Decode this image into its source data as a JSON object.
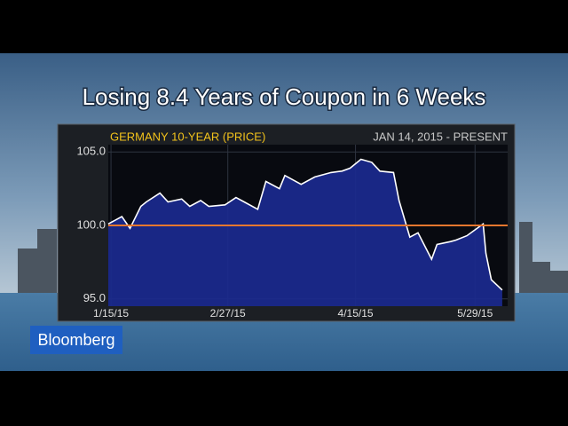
{
  "brand": "Bloomberg",
  "chart_data": {
    "type": "area",
    "title": "Losing 8.4 Years of Coupon in 6 Weeks",
    "period": "JAN 14, 2015 - PRESENT",
    "series": [
      {
        "name": "GERMANY 10-YEAR (PRICE)",
        "color": "#1b2a8f",
        "line_color": "#ffffff",
        "x": [
          "2015-01-14",
          "2015-01-19",
          "2015-01-22",
          "2015-01-26",
          "2015-01-28",
          "2015-02-02",
          "2015-02-05",
          "2015-02-10",
          "2015-02-13",
          "2015-02-17",
          "2015-02-20",
          "2015-02-26",
          "2015-03-02",
          "2015-03-05",
          "2015-03-10",
          "2015-03-13",
          "2015-03-18",
          "2015-03-20",
          "2015-03-26",
          "2015-03-31",
          "2015-04-06",
          "2015-04-10",
          "2015-04-13",
          "2015-04-17",
          "2015-04-21",
          "2015-04-24",
          "2015-04-29",
          "2015-05-01",
          "2015-05-05",
          "2015-05-08",
          "2015-05-13",
          "2015-05-15",
          "2015-05-20",
          "2015-05-22",
          "2015-05-26",
          "2015-06-01",
          "2015-06-02",
          "2015-06-04",
          "2015-06-08"
        ],
        "values": [
          100.1,
          100.6,
          99.8,
          101.3,
          101.6,
          102.2,
          101.6,
          101.8,
          101.3,
          101.7,
          101.3,
          101.4,
          101.9,
          101.6,
          101.1,
          103.0,
          102.5,
          103.4,
          102.8,
          103.3,
          103.6,
          103.7,
          103.9,
          104.5,
          104.3,
          103.7,
          103.6,
          101.7,
          99.2,
          99.5,
          97.7,
          98.7,
          98.9,
          99.0,
          99.3,
          100.1,
          98.1,
          96.3,
          95.6
        ]
      }
    ],
    "reference_line": 100,
    "reference_color": "#e8772e",
    "xlim": [
      "2015-01-14",
      "2015-06-10"
    ],
    "xticks": [
      {
        "value": "2015-01-15",
        "label": "1/15/15"
      },
      {
        "value": "2015-02-27",
        "label": "2/27/15"
      },
      {
        "value": "2015-04-15",
        "label": "4/15/15"
      },
      {
        "value": "2015-05-29",
        "label": "5/29/15"
      }
    ],
    "ylim": [
      94.5,
      105.5
    ],
    "yticks": [
      {
        "value": 95,
        "label": "95.0"
      },
      {
        "value": 100,
        "label": "100.0"
      },
      {
        "value": 105,
        "label": "105.0"
      }
    ],
    "grid": true
  }
}
